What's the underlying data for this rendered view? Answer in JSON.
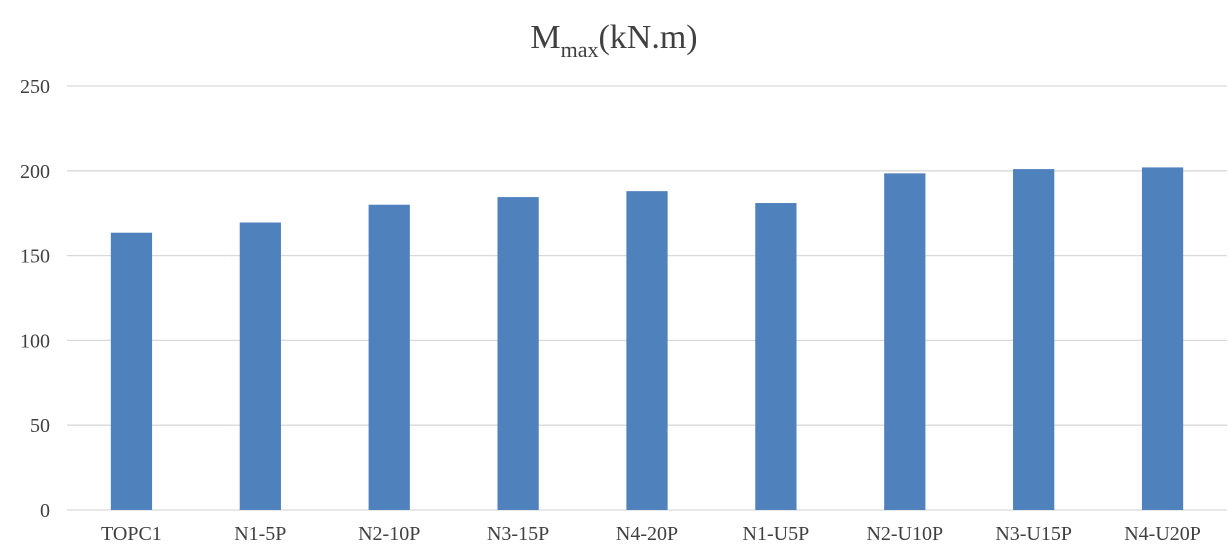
{
  "chart_data": {
    "type": "bar",
    "title": {
      "main": "M",
      "subscript": "max",
      "suffix": "(kN.m)"
    },
    "xlabel": "",
    "ylabel": "",
    "categories": [
      "TOPC1",
      "N1-5P",
      "N2-10P",
      "N3-15P",
      "N4-20P",
      "N1-U5P",
      "N2-U10P",
      "N3-U15P",
      "N4-U20P"
    ],
    "values": [
      163.5,
      169.5,
      180,
      184.5,
      188,
      181,
      198.5,
      201,
      202
    ],
    "ylim": [
      0,
      250
    ],
    "yticks": [
      0,
      50,
      100,
      150,
      200,
      250
    ],
    "grid": true,
    "legend": "none",
    "bar_color": "#4f81bd"
  }
}
